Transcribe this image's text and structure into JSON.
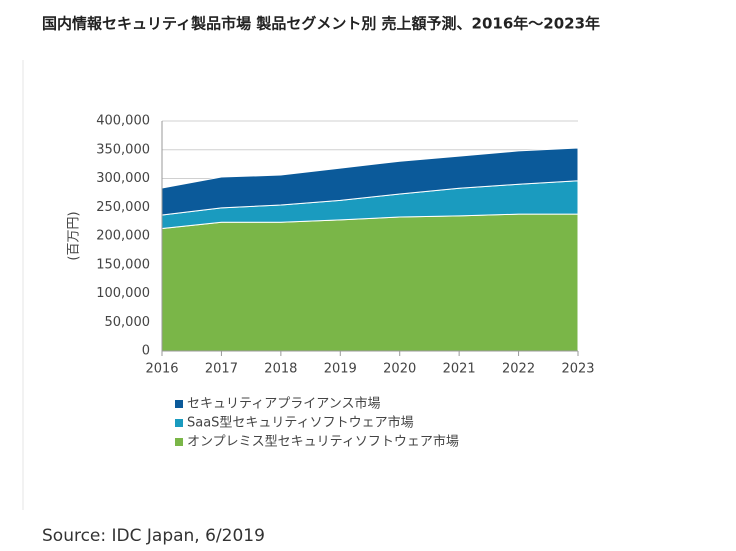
{
  "chart_data": {
    "type": "stacked_area",
    "title": "国内情報セキュリティ製品市場 製品セグメント別 売上額予測、2016年～2023年",
    "y_label": "(百万円)",
    "source": "Source: IDC Japan, 6/2019",
    "categories": [
      "2016",
      "2017",
      "2018",
      "2019",
      "2020",
      "2021",
      "2022",
      "2023"
    ],
    "series": [
      {
        "name": "オンプレミス型セキュリティソフトウェア市場",
        "color": "#7ab648",
        "values": [
          213000,
          224000,
          224000,
          228000,
          233000,
          235000,
          238000,
          238000
        ]
      },
      {
        "name": "SaaS型セキュリティソフトウェア市場",
        "color": "#1a9bbf",
        "values": [
          23500,
          25000,
          30000,
          34000,
          40000,
          48000,
          52000,
          58000
        ]
      },
      {
        "name": "セキュリティアプライアンス市場",
        "color": "#0b5a9a",
        "values": [
          47000,
          53500,
          52000,
          56000,
          57000,
          56000,
          58000,
          57000
        ]
      }
    ],
    "ylim": [
      0,
      400000
    ],
    "yticks": [
      0,
      {
        "value": 50000,
        "label": "50,000"
      },
      {
        "value": 100000,
        "label": "100,000"
      },
      {
        "value": 150000,
        "label": "150,000"
      },
      {
        "value": 200000,
        "label": "200,000"
      },
      {
        "value": 250000,
        "label": "250,000"
      },
      {
        "value": 300000,
        "label": "300,000"
      },
      {
        "value": 350000,
        "label": "350,000"
      },
      {
        "value": 400000,
        "label": "400,000"
      }
    ],
    "grid": true
  }
}
